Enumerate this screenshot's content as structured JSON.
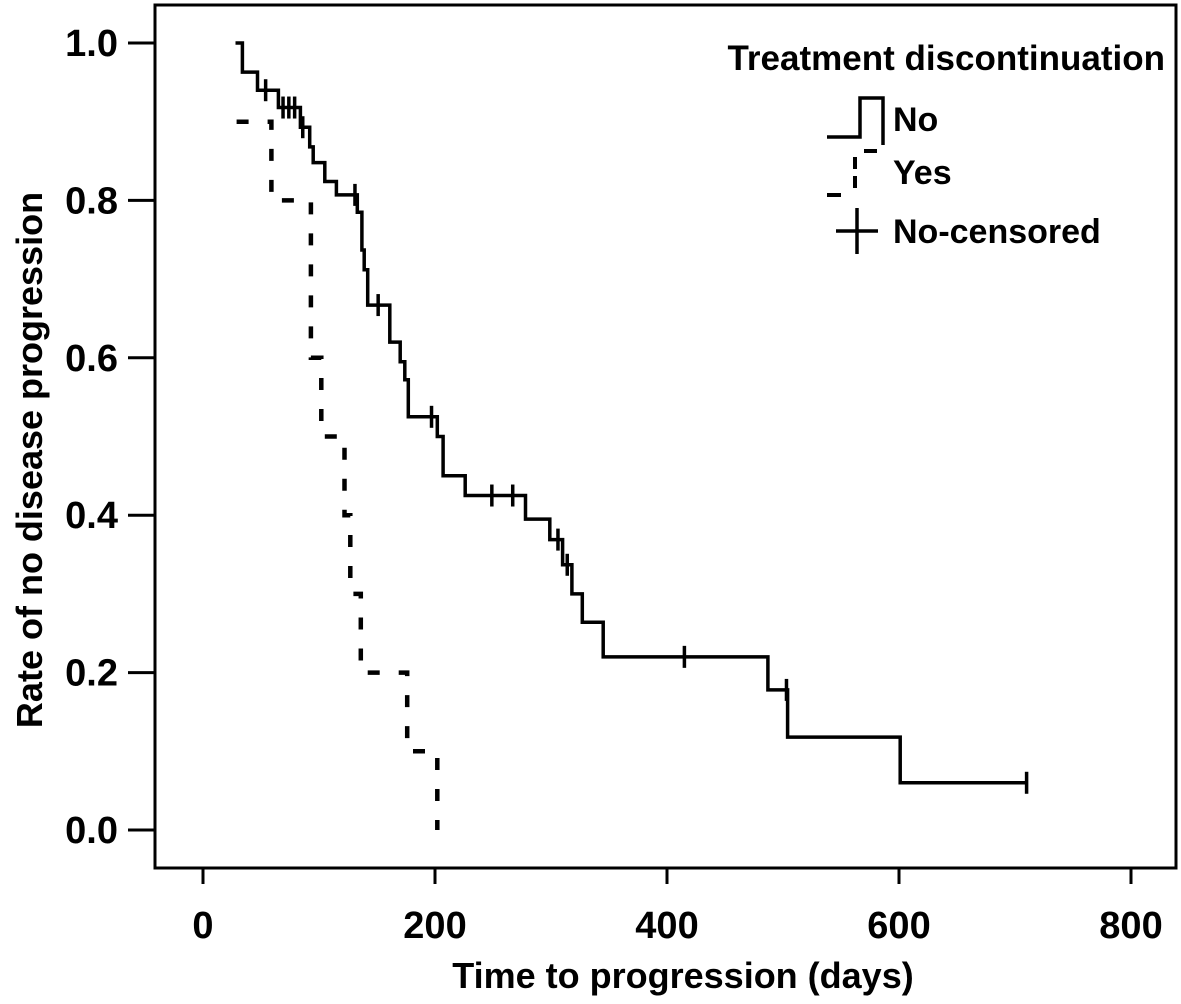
{
  "figure": {
    "x_axis_title": "Time to progression (days)",
    "y_axis_title": "Rate of no disease progression"
  },
  "legend": {
    "title": "Treatment discontinuation",
    "items": [
      {
        "label": "No",
        "marker": "solid-step-line"
      },
      {
        "label": "Yes",
        "marker": "dashed-step-line"
      },
      {
        "label": "No-censored",
        "marker": "plus"
      }
    ]
  },
  "chart_data": {
    "type": "line",
    "subtype": "kaplan_meier_step",
    "title": "",
    "xlabel": "Time to progression (days)",
    "ylabel": "Rate of no disease progression",
    "xlim": [
      -41,
      840
    ],
    "ylim": [
      -0.05,
      1.05
    ],
    "grid": false,
    "legend_position": "top-right",
    "colors": {
      "curves": "#000000",
      "background": "#ffffff",
      "text": "#000000"
    },
    "x_ticks": [
      {
        "value": 0,
        "label": "0"
      },
      {
        "value": 200,
        "label": "200"
      },
      {
        "value": 400,
        "label": "400"
      },
      {
        "value": 600,
        "label": "600"
      },
      {
        "value": 800,
        "label": "800"
      }
    ],
    "y_ticks": [
      {
        "value": 0.0,
        "label": "0.0"
      },
      {
        "value": 0.2,
        "label": "0.2"
      },
      {
        "value": 0.4,
        "label": "0.4"
      },
      {
        "value": 0.6,
        "label": "0.6"
      },
      {
        "value": 0.8,
        "label": "0.8"
      },
      {
        "value": 1.0,
        "label": "1.0"
      }
    ],
    "series": [
      {
        "name": "No",
        "line_style": "solid",
        "steps": [
          [
            28,
            1.0
          ],
          [
            34,
            1.0
          ],
          [
            34,
            0.963
          ],
          [
            47,
            0.963
          ],
          [
            47,
            0.94
          ],
          [
            65,
            0.94
          ],
          [
            65,
            0.918
          ],
          [
            84,
            0.918
          ],
          [
            84,
            0.893
          ],
          [
            92,
            0.893
          ],
          [
            92,
            0.868
          ],
          [
            95,
            0.868
          ],
          [
            95,
            0.848
          ],
          [
            105,
            0.848
          ],
          [
            105,
            0.824
          ],
          [
            115,
            0.824
          ],
          [
            115,
            0.807
          ],
          [
            133,
            0.807
          ],
          [
            133,
            0.785
          ],
          [
            137,
            0.785
          ],
          [
            137,
            0.737
          ],
          [
            139,
            0.737
          ],
          [
            139,
            0.712
          ],
          [
            142,
            0.712
          ],
          [
            142,
            0.667
          ],
          [
            161,
            0.667
          ],
          [
            161,
            0.62
          ],
          [
            170,
            0.62
          ],
          [
            170,
            0.595
          ],
          [
            174,
            0.595
          ],
          [
            174,
            0.572
          ],
          [
            177,
            0.572
          ],
          [
            177,
            0.525
          ],
          [
            202,
            0.525
          ],
          [
            202,
            0.5
          ],
          [
            207,
            0.5
          ],
          [
            207,
            0.45
          ],
          [
            226,
            0.45
          ],
          [
            226,
            0.425
          ],
          [
            278,
            0.425
          ],
          [
            278,
            0.395
          ],
          [
            299,
            0.395
          ],
          [
            299,
            0.369
          ],
          [
            310,
            0.369
          ],
          [
            310,
            0.337
          ],
          [
            318,
            0.337
          ],
          [
            318,
            0.3
          ],
          [
            327,
            0.3
          ],
          [
            327,
            0.264
          ],
          [
            345,
            0.264
          ],
          [
            345,
            0.22
          ],
          [
            487,
            0.22
          ],
          [
            487,
            0.178
          ],
          [
            504,
            0.178
          ],
          [
            504,
            0.118
          ],
          [
            601,
            0.118
          ],
          [
            601,
            0.06
          ],
          [
            711,
            0.06
          ]
        ],
        "censored": [
          [
            54,
            0.94
          ],
          [
            69,
            0.918
          ],
          [
            74,
            0.918
          ],
          [
            79,
            0.918
          ],
          [
            86,
            0.893
          ],
          [
            131,
            0.807
          ],
          [
            151,
            0.667
          ],
          [
            197,
            0.525
          ],
          [
            249,
            0.425
          ],
          [
            267,
            0.425
          ],
          [
            306,
            0.369
          ],
          [
            314,
            0.337
          ],
          [
            415,
            0.22
          ],
          [
            503,
            0.178
          ],
          [
            710,
            0.06
          ]
        ]
      },
      {
        "name": "Yes",
        "line_style": "dashed",
        "steps": [
          [
            29,
            0.9
          ],
          [
            59,
            0.9
          ],
          [
            59,
            0.8
          ],
          [
            93,
            0.8
          ],
          [
            93,
            0.6
          ],
          [
            102,
            0.6
          ],
          [
            102,
            0.5
          ],
          [
            122,
            0.5
          ],
          [
            122,
            0.4
          ],
          [
            127,
            0.4
          ],
          [
            127,
            0.3
          ],
          [
            136,
            0.3
          ],
          [
            136,
            0.2
          ],
          [
            176,
            0.2
          ],
          [
            176,
            0.1
          ],
          [
            202,
            0.1
          ],
          [
            202,
            0.0
          ]
        ],
        "censored": []
      }
    ]
  }
}
